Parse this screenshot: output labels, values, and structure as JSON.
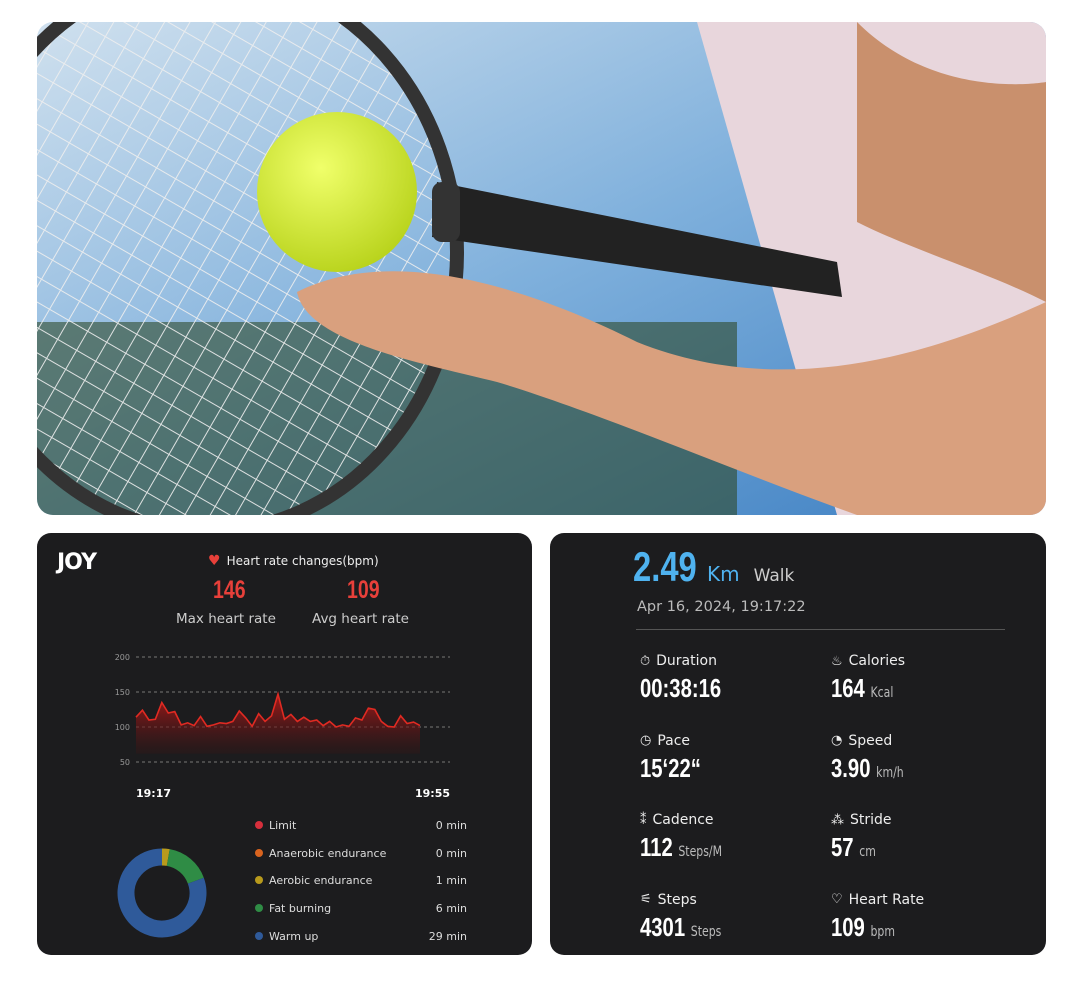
{
  "photo": {
    "subject": "tennis-player-with-smart-ring"
  },
  "left_panel": {
    "logo": "JOY",
    "title": "Heart rate changes(bpm)",
    "max_value": "146",
    "max_label": "Max heart rate",
    "avg_value": "109",
    "avg_label": "Avg heart rate",
    "colors": {
      "accent": "#e8403a"
    }
  },
  "chart_data": [
    {
      "type": "area",
      "title": "Heart rate changes(bpm)",
      "yticks": [
        "200",
        "150",
        "100",
        "50"
      ],
      "ylim": [
        50,
        200
      ],
      "xticks": [
        "19:17",
        "19:55"
      ],
      "grid": true,
      "color": "#e02a22",
      "values": [
        114,
        124,
        110,
        111,
        135,
        120,
        122,
        103,
        106,
        102,
        115,
        101,
        103,
        106,
        105,
        108,
        123,
        113,
        101,
        119,
        108,
        116,
        147,
        111,
        118,
        108,
        114,
        108,
        110,
        102,
        108,
        100,
        103,
        101,
        113,
        110,
        127,
        125,
        108,
        101,
        100,
        116,
        105,
        107,
        102
      ]
    },
    {
      "type": "pie",
      "donut": true,
      "slices": [
        {
          "name": "Limit",
          "value": 0,
          "label": "0 min",
          "color": "#d62f3c"
        },
        {
          "name": "Anaerobic endurance",
          "value": 0,
          "label": "0 min",
          "color": "#d9641f"
        },
        {
          "name": "Aerobic endurance",
          "value": 1,
          "label": "1 min",
          "color": "#b89a1c"
        },
        {
          "name": "Fat burning",
          "value": 6,
          "label": "6 min",
          "color": "#2f8c45"
        },
        {
          "name": "Warm up",
          "value": 29,
          "label": "29 min",
          "color": "#2f5a9a"
        }
      ]
    }
  ],
  "right_panel": {
    "distance": "2.49",
    "distance_unit": "Km",
    "activity": "Walk",
    "datetime": "Apr 16, 2024, 19:17:22",
    "accent": "#4fb2ef",
    "stats": [
      {
        "icon": "stopwatch-icon",
        "label": "Duration",
        "value": "00:38:16",
        "unit": ""
      },
      {
        "icon": "flame-icon",
        "label": "Calories",
        "value": "164",
        "unit": "Kcal"
      },
      {
        "icon": "timer-icon",
        "label": "Pace",
        "value": "15‘22“",
        "unit": ""
      },
      {
        "icon": "speedometer-icon",
        "label": "Speed",
        "value": "3.90",
        "unit": "km/h"
      },
      {
        "icon": "footprints-icon",
        "label": "Cadence",
        "value": "112",
        "unit": "Steps/M"
      },
      {
        "icon": "footprint-icon",
        "label": "Stride",
        "value": "57",
        "unit": "cm"
      },
      {
        "icon": "shoe-icon",
        "label": "Steps",
        "value": "4301",
        "unit": "Steps"
      },
      {
        "icon": "heart-icon",
        "label": "Heart Rate",
        "value": "109",
        "unit": "bpm"
      }
    ]
  }
}
